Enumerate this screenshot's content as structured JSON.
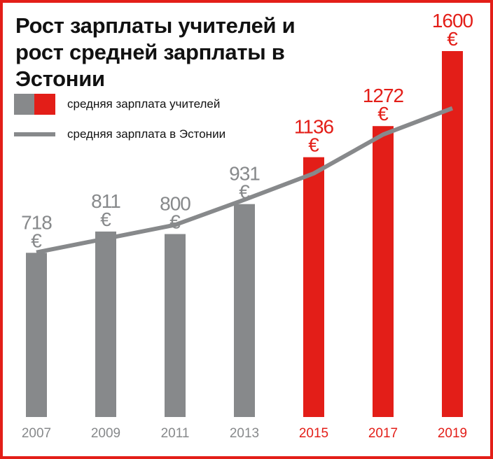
{
  "chart_data": {
    "type": "bar",
    "title": "Рост зарплаты учителей и рост средней зарплаты в Эстонии",
    "categories": [
      "2007",
      "2009",
      "2011",
      "2013",
      "2015",
      "2017",
      "2019"
    ],
    "series": [
      {
        "name": "средняя зарплата учителей",
        "type": "bar",
        "values": [
          718,
          811,
          800,
          931,
          1136,
          1272,
          1600
        ],
        "labels": [
          "718 €",
          "811 €",
          "800 €",
          "931 €",
          "1136 €",
          "1272 €",
          "1600 €"
        ]
      },
      {
        "name": "средняя зарплата в Эстонии",
        "type": "line",
        "values": [
          720,
          780,
          840,
          950,
          1065,
          1235,
          1350
        ]
      }
    ],
    "highlighted_categories": [
      "2015",
      "2017",
      "2019"
    ],
    "ylim": [
      0,
      1600
    ],
    "grid": false,
    "legend": "top-left",
    "currency_symbol": "€",
    "colors": {
      "bar": "#87898b",
      "bar_highlight": "#e31e18",
      "line": "#87898b",
      "frame": "#e31e18"
    }
  }
}
